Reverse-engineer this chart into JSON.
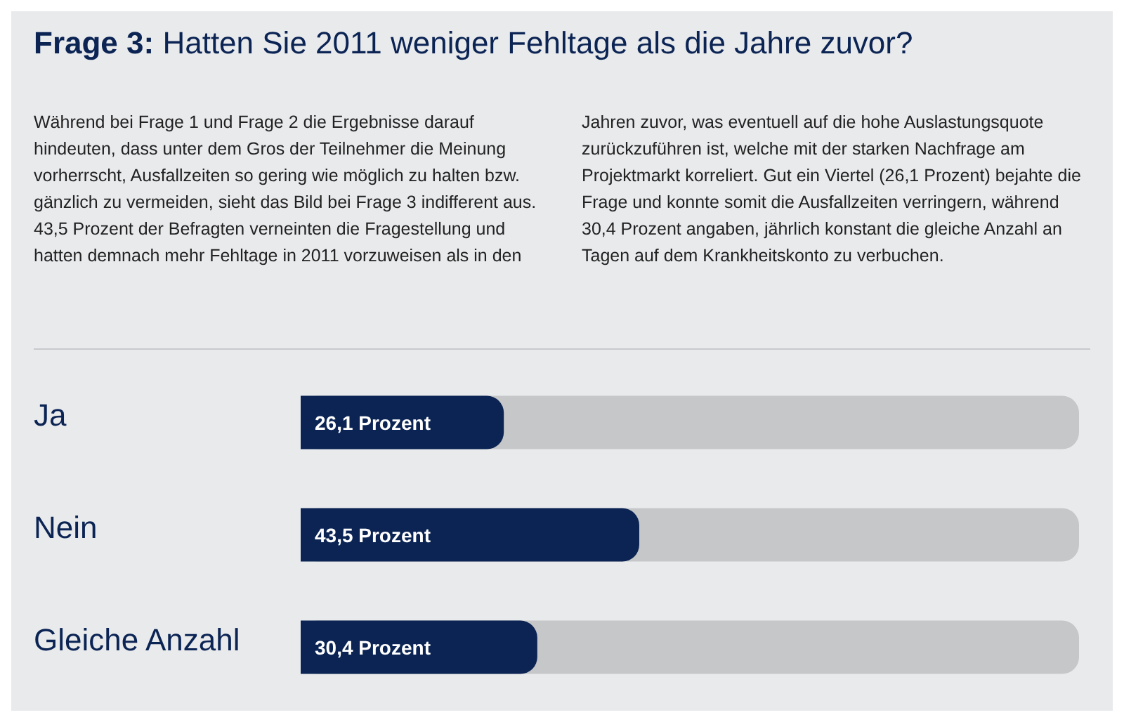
{
  "chart_data": {
    "type": "bar",
    "orientation": "horizontal",
    "title": "Frage 3: Hatten Sie 2011 weniger Fehltage als die Jahre zuvor?",
    "annotations": [
      "Während bei Frage 1 und Frage 2 die Ergebnisse darauf hindeuten, dass unter dem Gros der Teilnehmer die Meinung vorherrscht, Ausfallzeiten so gering wie möglich zu halten bzw. gänzlich zu vermeiden, sieht das Bild bei Frage 3 indifferent aus. 43,5 Prozent der Befragten verneinten die Fragestellung und hatten demnach mehr Fehltage in 2011 vorzuweisen als in den Jahren zuvor, was eventuell auf die hohe Auslastungsquote zurückzuführen ist, welche mit der starken Nachfrage am Projektmarkt korreliert. Gut ein Viertel (26,1 Prozent) bejahte die Frage und konnte somit die Ausfallzeiten verringern, während 30,4 Prozent angaben, jährlich konstant die gleiche Anzahl an Tagen auf dem Krankheitskonto zu verbuchen."
    ],
    "categories": [
      "Ja",
      "Nein",
      "Gleiche Anzahl"
    ],
    "values": [
      26.1,
      43.5,
      30.4
    ],
    "value_labels": [
      "26,1 Prozent",
      "43,5 Prozent",
      "30,4 Prozent"
    ],
    "color": "#0b2454",
    "xlim": [
      0,
      100
    ],
    "tick_labels": "y",
    "grid": false,
    "legend": false
  }
}
